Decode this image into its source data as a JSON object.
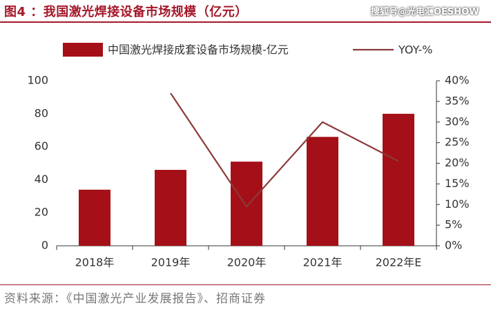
{
  "header": {
    "title": "图4 ：我国激光焊接设备市场规模（亿元）",
    "watermark": "搜狐号@光电汇OESHOW"
  },
  "footer": {
    "source": "资料来源：《中国激光产业发展报告》、招商证券"
  },
  "colors": {
    "bar": "#a50f17",
    "line": "#8b3a3a",
    "accent": "#a5182a",
    "axis": "#333333"
  },
  "chart_data": {
    "type": "bar",
    "title": "",
    "categories": [
      "2018年",
      "2019年",
      "2020年",
      "2021年",
      "2022年E"
    ],
    "series": [
      {
        "name": "中国激光焊接成套设备市场规模-亿元",
        "type": "bar",
        "axis": "left",
        "values": [
          34,
          46,
          51,
          66,
          80
        ]
      },
      {
        "name": "YOY-%",
        "type": "line",
        "axis": "right",
        "values": [
          null,
          37,
          9.5,
          30,
          20.5
        ]
      }
    ],
    "ylim": [
      0,
      100
    ],
    "yticks": [
      "0",
      "20",
      "40",
      "60",
      "80",
      "100"
    ],
    "y2lim": [
      0,
      40
    ],
    "y2ticks": [
      "0%",
      "5%",
      "10%",
      "15%",
      "20%",
      "25%",
      "30%",
      "35%",
      "40%"
    ],
    "legend_position": "top",
    "grid": false
  }
}
